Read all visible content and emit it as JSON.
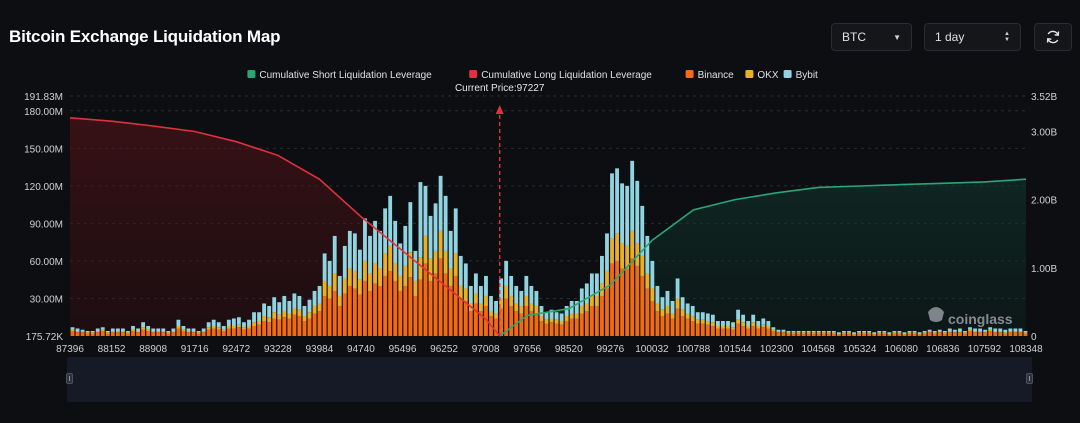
{
  "page": {
    "title": "Bitcoin Exchange Liquidation Map"
  },
  "controls": {
    "coin": "BTC",
    "range": "1 day",
    "refresh_icon": "refresh-icon"
  },
  "colors": {
    "background": "#0d0e11",
    "short_cumulative": "#2aa676",
    "long_cumulative": "#e0313f",
    "binance": "#f26a12",
    "okx": "#e8b026",
    "bybit": "#8fd4e0",
    "current_price_line": "#e0313f"
  },
  "chart_data": {
    "type": "bar",
    "title": "",
    "current_price_label": "Current Price:97227",
    "current_price": 97227,
    "legend": [
      {
        "name": "Cumulative Short Liquidation Leverage",
        "color": "#2aa676"
      },
      {
        "name": "Cumulative Long Liquidation Leverage",
        "color": "#e0313f"
      },
      {
        "name": "Binance",
        "color": "#f26a12"
      },
      {
        "name": "OKX",
        "color": "#e8b026"
      },
      {
        "name": "Bybit",
        "color": "#8fd4e0"
      }
    ],
    "legend_position": "top-center",
    "x_tick_labels": [
      "87396",
      "88152",
      "88908",
      "91716",
      "92472",
      "93228",
      "93984",
      "94740",
      "95496",
      "96252",
      "97008",
      "97656",
      "98520",
      "99276",
      "100032",
      "100788",
      "101544",
      "102300",
      "104568",
      "105324",
      "106080",
      "106836",
      "107592",
      "108348"
    ],
    "left_axis": {
      "ticks": [
        "175.72K",
        "30.00M",
        "60.00M",
        "90.00M",
        "120.00M",
        "150.00M",
        "180.00M",
        "191.83M"
      ],
      "range_m": [
        0.17572,
        191.83
      ]
    },
    "right_axis": {
      "ticks": [
        "0",
        "1.00B",
        "2.00B",
        "3.00B",
        "3.52B"
      ],
      "range_b": [
        0,
        3.52
      ]
    },
    "grid": true,
    "series": [
      {
        "name": "Binance",
        "values_m": [
          4,
          3,
          3,
          2,
          2,
          3,
          4,
          2,
          3,
          3,
          3,
          2,
          4,
          3,
          5,
          4,
          3,
          3,
          3,
          2,
          3,
          6,
          4,
          3,
          3,
          2,
          3,
          5,
          6,
          5,
          4,
          6,
          6,
          7,
          5,
          6,
          8,
          9,
          12,
          11,
          14,
          13,
          15,
          14,
          17,
          16,
          12,
          14,
          18,
          20,
          32,
          30,
          36,
          24,
          34,
          40,
          38,
          33,
          44,
          36,
          42,
          40,
          48,
          52,
          44,
          36,
          40,
          47,
          32,
          45,
          58,
          44,
          50,
          62,
          50,
          40,
          48,
          30,
          28,
          20,
          26,
          20,
          24,
          16,
          14,
          22,
          30,
          24,
          20,
          18,
          24,
          20,
          18,
          12,
          10,
          11,
          10,
          9,
          12,
          14,
          14,
          18,
          20,
          24,
          24,
          32,
          38,
          58,
          60,
          54,
          54,
          62,
          56,
          48,
          38,
          28,
          20,
          16,
          18,
          14,
          22,
          16,
          14,
          12,
          10,
          10,
          9,
          8,
          6,
          6,
          6,
          5,
          10,
          8,
          6,
          8,
          6,
          7,
          6,
          4,
          3,
          3,
          2,
          2,
          2,
          2,
          2,
          2,
          2,
          2,
          2,
          2,
          1,
          2,
          2,
          1,
          2,
          2,
          2,
          1,
          2,
          2,
          1,
          2,
          2,
          1,
          2,
          2,
          1,
          2,
          3,
          2,
          3,
          2,
          3,
          3,
          3,
          2,
          4,
          3,
          3,
          3,
          4,
          3,
          3,
          2,
          3,
          3,
          3,
          2
        ]
      },
      {
        "name": "OKX",
        "values_m": [
          1,
          1,
          1,
          1,
          1,
          1,
          1,
          1,
          1,
          1,
          1,
          1,
          1,
          1,
          2,
          1,
          1,
          1,
          1,
          1,
          1,
          2,
          1,
          1,
          1,
          1,
          1,
          2,
          2,
          2,
          1,
          2,
          2,
          2,
          2,
          2,
          3,
          3,
          4,
          4,
          5,
          4,
          5,
          4,
          5,
          5,
          4,
          5,
          6,
          6,
          12,
          10,
          14,
          8,
          12,
          14,
          14,
          12,
          16,
          14,
          16,
          14,
          18,
          20,
          14,
          12,
          16,
          20,
          12,
          18,
          22,
          18,
          18,
          22,
          18,
          14,
          18,
          10,
          10,
          6,
          8,
          6,
          8,
          4,
          4,
          8,
          10,
          8,
          6,
          6,
          8,
          6,
          6,
          4,
          3,
          3,
          3,
          3,
          4,
          4,
          4,
          6,
          6,
          8,
          8,
          10,
          14,
          20,
          22,
          20,
          18,
          22,
          18,
          16,
          12,
          10,
          6,
          5,
          6,
          4,
          8,
          5,
          4,
          4,
          3,
          3,
          3,
          3,
          2,
          2,
          2,
          2,
          3,
          3,
          2,
          3,
          2,
          2,
          2,
          1,
          1,
          1,
          1,
          1,
          1,
          1,
          1,
          1,
          1,
          1,
          1,
          1,
          1,
          1,
          1,
          1,
          1,
          1,
          1,
          1,
          1,
          1,
          1,
          1,
          1,
          1,
          1,
          1,
          1,
          1,
          1,
          1,
          1,
          1,
          1,
          1,
          1,
          1,
          1,
          1,
          1,
          1,
          1,
          1,
          1,
          1,
          1,
          1,
          1,
          1
        ]
      },
      {
        "name": "Bybit",
        "values_m": [
          2,
          2,
          1,
          1,
          1,
          2,
          2,
          1,
          2,
          2,
          2,
          1,
          3,
          2,
          4,
          3,
          2,
          2,
          2,
          1,
          2,
          5,
          3,
          2,
          2,
          1,
          2,
          4,
          5,
          4,
          3,
          5,
          6,
          6,
          4,
          5,
          8,
          7,
          10,
          9,
          12,
          10,
          12,
          10,
          12,
          11,
          8,
          10,
          12,
          14,
          22,
          20,
          30,
          16,
          26,
          30,
          30,
          24,
          34,
          30,
          34,
          30,
          36,
          40,
          34,
          26,
          32,
          40,
          24,
          60,
          40,
          34,
          38,
          44,
          44,
          30,
          36,
          24,
          20,
          14,
          16,
          14,
          16,
          12,
          10,
          16,
          20,
          16,
          14,
          12,
          16,
          14,
          12,
          8,
          6,
          7,
          6,
          6,
          8,
          10,
          10,
          14,
          16,
          18,
          18,
          22,
          30,
          52,
          52,
          48,
          48,
          56,
          50,
          40,
          30,
          22,
          14,
          10,
          12,
          10,
          16,
          10,
          8,
          8,
          6,
          6,
          6,
          6,
          4,
          4,
          4,
          4,
          8,
          6,
          4,
          6,
          4,
          5,
          4,
          2,
          1,
          1,
          1,
          1,
          1,
          1,
          1,
          1,
          1,
          1,
          1,
          1,
          1,
          1,
          1,
          1,
          1,
          1,
          1,
          1,
          1,
          1,
          1,
          1,
          1,
          1,
          1,
          1,
          1,
          1,
          1,
          1,
          1,
          1,
          2,
          1,
          2,
          1,
          2,
          2,
          2,
          1,
          2,
          2,
          2,
          2,
          2,
          2,
          2,
          1,
          2,
          2,
          2,
          1
        ]
      },
      {
        "name": "Cumulative Long Liquidation Leverage",
        "x": [
          87396,
          88152,
          88908,
          91716,
          92472,
          93228,
          93984,
          94740,
          95496,
          96252,
          97008,
          97227
        ],
        "values_b": [
          3.2,
          3.15,
          3.08,
          3.0,
          2.85,
          2.65,
          2.3,
          1.75,
          1.25,
          0.75,
          0.25,
          0.0
        ]
      },
      {
        "name": "Cumulative Short Liquidation Leverage",
        "x": [
          97227,
          97656,
          98520,
          99276,
          100032,
          100788,
          101544,
          102300,
          104568,
          105324,
          106080,
          106836,
          107592,
          108348
        ],
        "values_b": [
          0.0,
          0.3,
          0.4,
          0.75,
          1.4,
          1.85,
          2.0,
          2.1,
          2.18,
          2.2,
          2.22,
          2.24,
          2.26,
          2.3
        ]
      }
    ]
  },
  "watermark": "coinglass"
}
